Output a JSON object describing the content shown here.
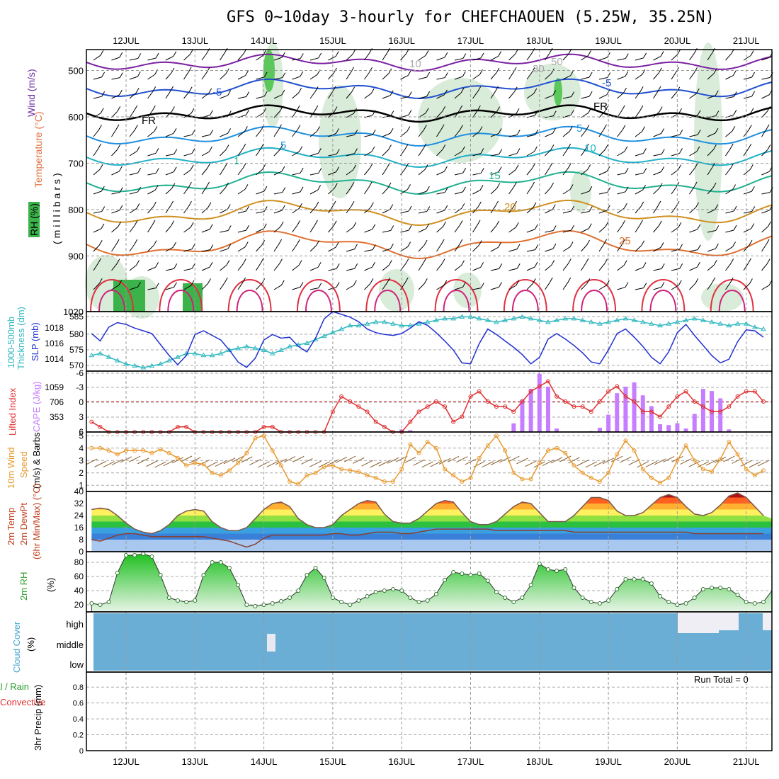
{
  "title": "GFS 0~10day 3-hourly for CHEFCHAOUEN (5.25W, 35.25N)",
  "dates": [
    "12JUL",
    "13JUL",
    "14JUL",
    "15JUL",
    "16JUL",
    "17JUL",
    "18JUL",
    "19JUL",
    "20JUL",
    "21JUL"
  ],
  "colors": {
    "frame": "#000000",
    "grid": "#888888",
    "rh_green": "#3cb34a",
    "cape": "#c77dff",
    "li": "#e03030",
    "slp": "#2030d0",
    "thick": "#30b8c0",
    "wind": "#e89a30",
    "cloud": "#6aaed6",
    "precip_green": "#2ca02c",
    "precip_red": "#e03030"
  },
  "panels": {
    "upper": {
      "labels": {
        "wind": "Wind (m/s)",
        "temp": "Temperature (°C)",
        "rh": "RH (%)",
        "units": "(millibars)"
      },
      "yticks": [
        "500",
        "600",
        "700",
        "800",
        "900",
        "1020"
      ],
      "contour_labels": [
        "-5",
        "-5",
        "FR",
        "FR",
        "5",
        "5",
        "10",
        "1",
        "15",
        "20",
        "25",
        "10",
        "30",
        "50"
      ]
    },
    "thickness": {
      "labels": {
        "thick": "1000-500mb",
        "thick2": "Thickness (dm)",
        "slp": "SLP (mb)"
      },
      "left_ticks": [
        "585",
        "580",
        "575",
        "570"
      ],
      "right_ticks": [
        "1018",
        "1016",
        "1014"
      ]
    },
    "cape": {
      "labels": {
        "li": "Lifted Index",
        "cape": "CAPE (J/kg)"
      },
      "left_ticks": [
        "-6",
        "-3",
        "0",
        "3",
        "6"
      ],
      "right_ticks": [
        "1059",
        "706",
        "353"
      ]
    },
    "wind10": {
      "labels": {
        "a": "10m Wind",
        "b": "Speed",
        "c": "(m/s) & Barbs"
      },
      "ticks": [
        "5",
        "4",
        "3",
        "2",
        "1"
      ]
    },
    "temp2m": {
      "labels": {
        "a": "2m Temp",
        "b": "2m DewPt",
        "c": "(6hr Min/Max) (°C)"
      },
      "ticks": [
        "40",
        "32",
        "24",
        "16",
        "8",
        "0"
      ]
    },
    "rh2m": {
      "labels": {
        "a": "2m RH",
        "b": "(%)"
      },
      "ticks": [
        "80",
        "60",
        "40",
        "20"
      ]
    },
    "cloud": {
      "labels": {
        "a": "Cloud Cover",
        "b": "(%)"
      },
      "ticks": [
        "high",
        "middle",
        "low"
      ]
    },
    "precip": {
      "labels": {
        "a": "Total / Rain",
        "b": "Convective",
        "c": "3hr Precip (mm)"
      },
      "ticks": [
        "0.8",
        "0.6",
        "0.4",
        "0.2",
        "0"
      ],
      "run_total": "Run Total = 0"
    }
  },
  "chart_data": [
    {
      "type": "line",
      "name": "slp",
      "x_start": "2025-07-11 12Z",
      "step_hours": 3,
      "ylabel": "SLP (mb)",
      "ylim": [
        1012.5,
        1019
      ],
      "values": [
        1016.6,
        1015.8,
        1017.3,
        1017.8,
        1017.6,
        1017.2,
        1016.9,
        1016.6,
        1015.4,
        1014.2,
        1013.2,
        1014.2,
        1016.5,
        1016.9,
        1016.4,
        1015.9,
        1014.8,
        1013.5,
        1012.9,
        1013.9,
        1015.9,
        1016.5,
        1016.1,
        1016.2,
        1015.2,
        1014.6,
        1016.1,
        1018.2,
        1019,
        1018.7,
        1018.4,
        1017.9,
        1017.1,
        1016.7,
        1016.5,
        1016.4,
        1016.6,
        1017.2,
        1017.9,
        1017.5,
        1016.7,
        1015.8,
        1014.8,
        1013.4,
        1013.3,
        1015.5,
        1017.1,
        1016.5,
        1015.8,
        1015.1,
        1014.3,
        1013.3,
        1014,
        1016,
        1016.6,
        1016,
        1015.3,
        1014.5,
        1013.5,
        1013.3,
        1014.8,
        1016.6,
        1017.1,
        1016.2,
        1015.2,
        1014,
        1013.3,
        1014.6,
        1016.7,
        1017.6,
        1016.4,
        1015.3,
        1014.2,
        1013.4,
        1013.8,
        1015.7,
        1017,
        1016.9,
        1016.2
      ]
    },
    {
      "type": "line",
      "name": "thickness",
      "ylabel": "Thickness (dm)",
      "ylim": [
        569,
        586
      ],
      "values": [
        573.5,
        574,
        573,
        572,
        571,
        570.5,
        570,
        570.5,
        571,
        572,
        573,
        574,
        574,
        573.5,
        573.5,
        574,
        575,
        575.5,
        576,
        575.5,
        575,
        574,
        575,
        576,
        576.5,
        577,
        578,
        579,
        580,
        581,
        582,
        582,
        582.5,
        583,
        583,
        582.5,
        582,
        582,
        582.5,
        583,
        583.5,
        584,
        584,
        584.5,
        584.5,
        584,
        583.5,
        583,
        583.5,
        584,
        584.5,
        584,
        583.5,
        583,
        583.5,
        584,
        584,
        583.5,
        583,
        582.5,
        583,
        583.5,
        584,
        583.5,
        583,
        582.5,
        582,
        582.5,
        583,
        583.5,
        584,
        583.5,
        583,
        582.5,
        582,
        582.5,
        582.5,
        581.5,
        581
      ]
    },
    {
      "type": "line",
      "name": "lifted_index",
      "ylim": [
        6,
        -6
      ],
      "values": [
        4,
        5,
        6,
        6,
        6,
        6,
        6,
        6,
        6,
        6,
        5,
        5,
        6,
        6,
        6,
        6,
        6,
        6,
        6,
        6,
        5,
        5,
        6,
        6,
        6,
        6,
        6,
        6,
        2,
        -1,
        0,
        1,
        2,
        4,
        5,
        6,
        6,
        4,
        2,
        1,
        0,
        1,
        4,
        3,
        -1,
        -2,
        0,
        1,
        1,
        2,
        0,
        -2,
        -3,
        -4,
        -1,
        0,
        1,
        1,
        2,
        0,
        -2,
        -3,
        -1,
        0,
        2,
        2,
        3,
        1,
        -1,
        -2,
        0,
        1,
        2,
        2,
        1,
        -1,
        -2,
        -2,
        0,
        2,
        4,
        6,
        6,
        6,
        6
      ]
    },
    {
      "type": "bar",
      "name": "cape",
      "ylim": [
        0,
        1412
      ],
      "values": [
        0,
        0,
        0,
        0,
        0,
        0,
        0,
        0,
        0,
        0,
        0,
        0,
        0,
        0,
        0,
        0,
        0,
        0,
        0,
        0,
        0,
        0,
        0,
        0,
        0,
        0,
        0,
        0,
        0,
        0,
        0,
        0,
        0,
        0,
        0,
        0,
        60,
        40,
        0,
        0,
        0,
        0,
        0,
        0,
        0,
        0,
        0,
        0,
        0,
        200,
        750,
        1000,
        1350,
        1050,
        80,
        0,
        0,
        0,
        20,
        100,
        400,
        900,
        1050,
        1150,
        850,
        600,
        180,
        160,
        200,
        80,
        420,
        1000,
        950,
        780,
        60,
        0,
        0,
        0,
        0,
        0,
        0,
        120,
        750,
        750,
        270,
        100,
        0,
        0,
        0,
        0,
        100,
        450,
        640,
        340,
        80,
        0
      ]
    },
    {
      "type": "line",
      "name": "wind10m_speed",
      "ylim": [
        0.5,
        5.3
      ],
      "values": [
        4,
        4,
        3.8,
        3.5,
        3.8,
        3.8,
        3.8,
        3.6,
        3.9,
        3.6,
        3.2,
        2.6,
        2.8,
        2.7,
        2,
        1.8,
        2.2,
        2.8,
        3.6,
        4.8,
        5,
        3.8,
        2.6,
        1.3,
        1.1,
        1.8,
        2,
        2.5,
        2.6,
        2.3,
        2.2,
        2.1,
        1.8,
        1.6,
        1.3,
        1.3,
        2.3,
        4.3,
        3.6,
        4.5,
        4,
        2.3,
        1.8,
        1.3,
        1.6,
        3.2,
        4.2,
        5,
        3.8,
        2,
        1.5,
        1.5,
        2.8,
        3.8,
        4,
        3.6,
        2.6,
        2,
        1.6,
        1.3,
        2,
        3.5,
        4.6,
        3.8,
        2.3,
        1.6,
        1.2,
        1.6,
        3,
        4.2,
        3,
        2.3,
        2.1,
        3.1,
        4.5,
        3.5,
        2.3,
        1.8,
        2.2,
        3,
        3.6,
        2.6,
        1.8,
        2,
        3.8,
        2.9,
        2.6,
        3.3,
        3,
        3.2,
        2.6,
        0.9,
        2.3,
        3.8,
        2.7,
        3
      ]
    },
    {
      "type": "area",
      "name": "temp2m",
      "ylim": [
        0,
        40
      ],
      "values": [
        28,
        29,
        28,
        24,
        19,
        15,
        13,
        12,
        14,
        18,
        24,
        27,
        28,
        27,
        20,
        16,
        14,
        14,
        16,
        22,
        28,
        32,
        33,
        30,
        22,
        18,
        16,
        16,
        18,
        24,
        28,
        32,
        34,
        33,
        25,
        20,
        19,
        19,
        22,
        27,
        32,
        34,
        33,
        26,
        20,
        18,
        18,
        20,
        25,
        30,
        33,
        32,
        26,
        20,
        20,
        20,
        24,
        30,
        36,
        36,
        34,
        27,
        24,
        24,
        26,
        31,
        36,
        38,
        36,
        30,
        25,
        24,
        26,
        31,
        37,
        39,
        36,
        30,
        24,
        22,
        24,
        30,
        37,
        39,
        36,
        29,
        24,
        22,
        24
      ]
    },
    {
      "type": "line",
      "name": "dewpoint2m",
      "ylim": [
        0,
        40
      ],
      "values": [
        8,
        7,
        9,
        11,
        12,
        12,
        11,
        10,
        10,
        10,
        10,
        10,
        10,
        10,
        9,
        8,
        7,
        5,
        3,
        5,
        9,
        11,
        11,
        11,
        11,
        11,
        11,
        11,
        12,
        12,
        11,
        11,
        12,
        13,
        13,
        13,
        12,
        12,
        13,
        14,
        15,
        15,
        15,
        15,
        15,
        15,
        15,
        14,
        14,
        14,
        14,
        14,
        14,
        14,
        14,
        14,
        13,
        13,
        13,
        13,
        13,
        13,
        13,
        13,
        13,
        13,
        13,
        13,
        13,
        13,
        12,
        12,
        12,
        12,
        12,
        12,
        12,
        12,
        12,
        12,
        11,
        12,
        13,
        12,
        11,
        11
      ]
    },
    {
      "type": "area",
      "name": "rh2m",
      "ylim": [
        10,
        95
      ],
      "values": [
        22,
        20,
        24,
        65,
        90,
        90,
        92,
        88,
        62,
        30,
        26,
        24,
        26,
        62,
        80,
        80,
        72,
        48,
        20,
        18,
        20,
        22,
        25,
        30,
        40,
        62,
        72,
        58,
        30,
        24,
        20,
        26,
        32,
        38,
        40,
        42,
        40,
        30,
        24,
        26,
        35,
        55,
        66,
        64,
        62,
        64,
        54,
        38,
        30,
        24,
        30,
        48,
        78,
        70,
        68,
        70,
        44,
        30,
        24,
        22,
        26,
        42,
        56,
        56,
        56,
        50,
        32,
        24,
        20,
        22,
        30,
        42,
        44,
        44,
        42,
        34,
        24,
        22,
        24,
        40,
        50,
        44,
        40,
        32,
        24,
        18,
        20,
        24,
        36,
        42,
        40,
        36
      ]
    },
    {
      "type": "bar",
      "name": "precip",
      "ylim": [
        0,
        1
      ],
      "values": [],
      "run_total": "Run Total = 0"
    }
  ]
}
